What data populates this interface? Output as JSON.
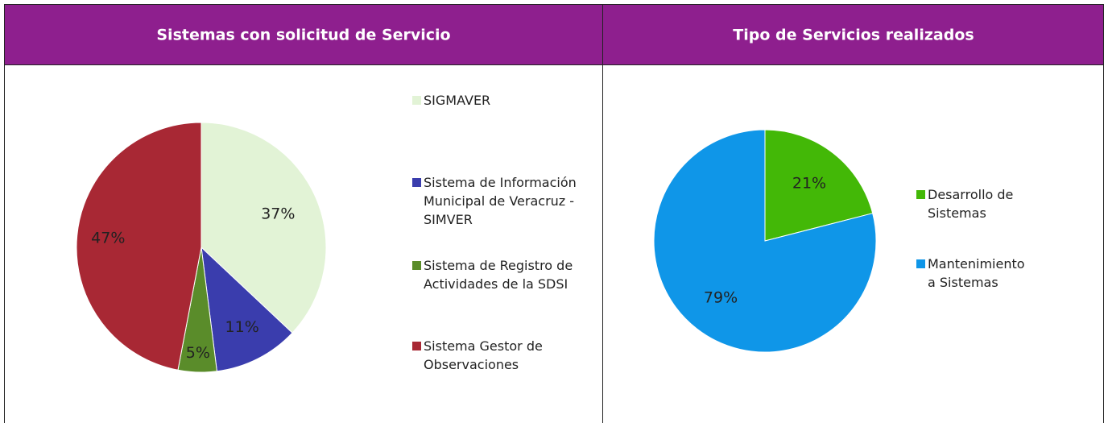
{
  "chart_data": [
    {
      "type": "pie",
      "title": "Sistemas con solicitud de Servicio",
      "categories": [
        "SIGMAVER",
        "Sistema de Información Municipal de Veracruz - SIMVER",
        "Sistema de Registro de Actividades de la SDSI",
        "Sistema Gestor de Observaciones"
      ],
      "values": [
        37,
        11,
        5,
        47
      ],
      "value_labels": [
        "37%",
        "11%",
        "5%",
        "47%"
      ],
      "colors": [
        "#e2f3d6",
        "#3a3dad",
        "#5a8c2a",
        "#a82834"
      ],
      "legend": "right"
    },
    {
      "type": "pie",
      "title": "Tipo de Servicios realizados",
      "categories": [
        "Desarrollo de Sistemas",
        "Mantenimiento a Sistemas"
      ],
      "values": [
        21,
        79
      ],
      "value_labels": [
        "21%",
        "79%"
      ],
      "colors": [
        "#43b807",
        "#0f96e8"
      ],
      "legend": "right"
    }
  ]
}
